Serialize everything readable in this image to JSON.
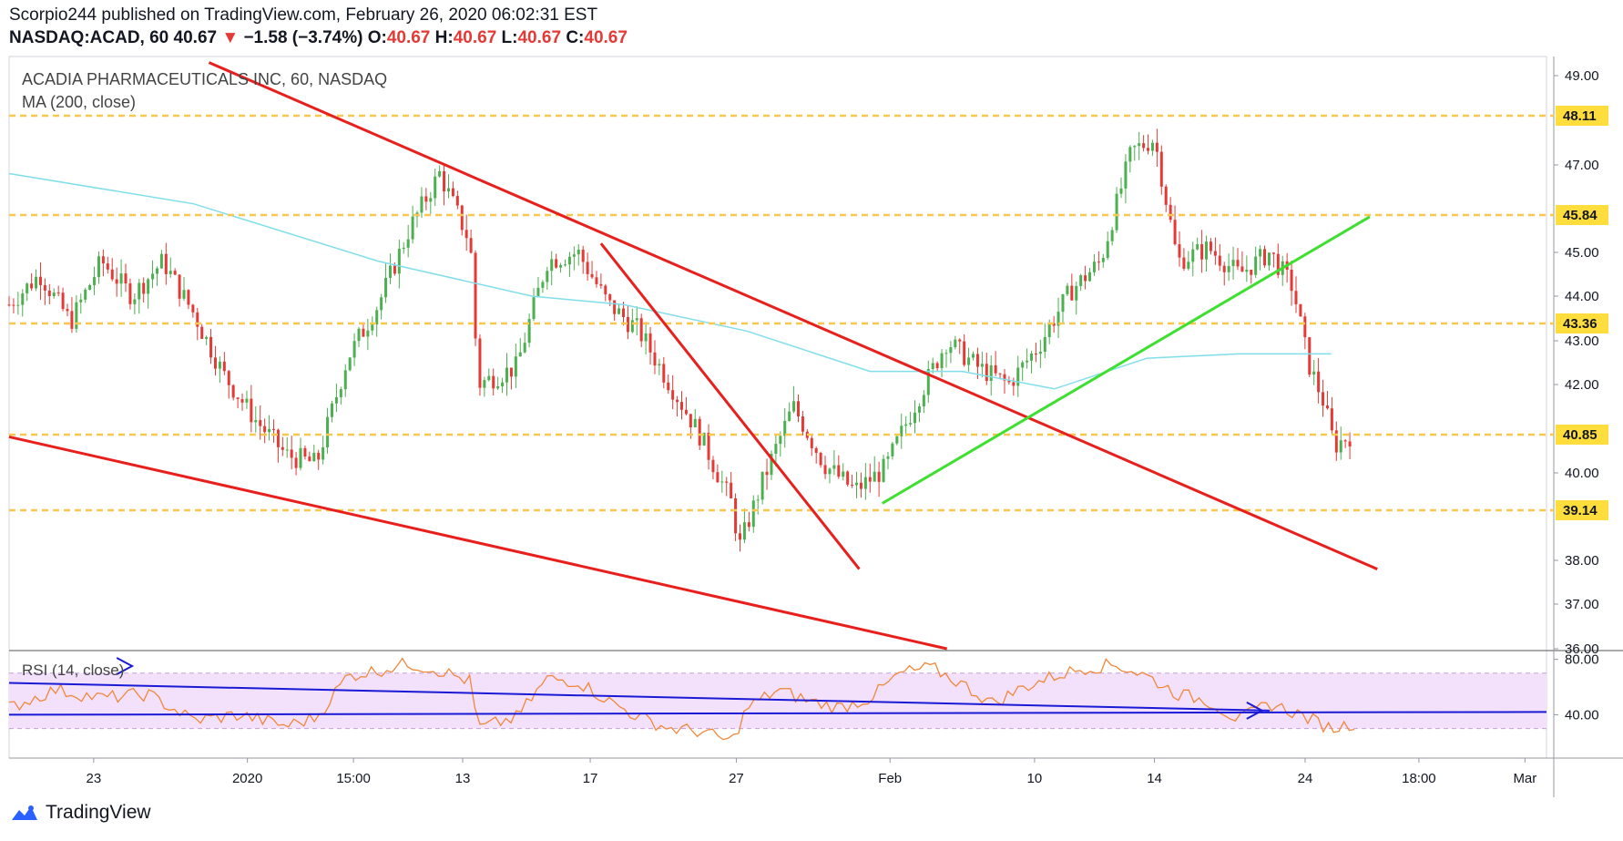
{
  "header": {
    "publisher_line": "Scorpio244 published on TradingView.com, February 26, 2020 06:02:31 EST",
    "symbol": "NASDAQ:ACAD, 60",
    "last": "40.67",
    "change": "−1.58 (−3.74%)",
    "o_label": "O:",
    "o": "40.67",
    "h_label": "H:",
    "h": "40.67",
    "l_label": "L:",
    "l": "40.67",
    "c_label": "C:",
    "c": "40.67"
  },
  "legend": {
    "title": "ACADIA PHARMACEUTICALS INC, 60, NASDAQ",
    "ma": "MA (200, close)",
    "rsi": "RSI (14, close)"
  },
  "footer": {
    "brand": "TradingView"
  },
  "colors": {
    "candle_up": "#4caf50",
    "candle_down": "#e53935",
    "ma": "#80deea",
    "level": "#f9c74f",
    "trend_red": "#e8201d",
    "trend_green": "#3ee02f",
    "rsi_line": "#f0883b",
    "rsi_band": "#f3e1fb",
    "rsi_trend": "#1a1ad6",
    "badge": "#ffdd3d"
  },
  "chart_data": [
    {
      "type": "candlestick",
      "title": "ACADIA PHARMACEUTICALS INC, 60, NASDAQ",
      "y_axis_side": "right",
      "ylim": [
        36,
        49.5
      ],
      "yticks": [
        "49.00",
        "47.00",
        "45.00",
        "44.00",
        "43.00",
        "42.00",
        "40.00",
        "38.00",
        "37.00",
        "36.00"
      ],
      "xticks": [
        "23",
        "2020",
        "15:00",
        "13",
        "17",
        "27",
        "Feb",
        "10",
        "14",
        "24",
        "18:00",
        "Mar"
      ],
      "horizontal_levels": [
        48.11,
        45.84,
        43.36,
        40.85,
        39.14
      ],
      "level_labels": [
        "48.11",
        "45.84",
        "43.36",
        "40.85",
        "39.14"
      ],
      "series": [
        {
          "name": "MA (200, close)",
          "type": "line",
          "points": [
            [
              0.0,
              46.8
            ],
            [
              0.12,
              46.1
            ],
            [
              0.24,
              44.8
            ],
            [
              0.34,
              44.0
            ],
            [
              0.4,
              43.8
            ],
            [
              0.48,
              43.2
            ],
            [
              0.56,
              42.3
            ],
            [
              0.62,
              42.3
            ],
            [
              0.68,
              41.9
            ],
            [
              0.74,
              42.6
            ],
            [
              0.8,
              42.7
            ],
            [
              0.86,
              42.7
            ]
          ]
        }
      ],
      "trendlines": [
        {
          "color": "red",
          "points": [
            [
              0.0,
              40.8
            ],
            [
              0.61,
              36.0
            ]
          ]
        },
        {
          "color": "red",
          "points": [
            [
              0.13,
              49.3
            ],
            [
              0.89,
              37.8
            ]
          ]
        },
        {
          "color": "red",
          "points": [
            [
              0.385,
              45.2
            ],
            [
              0.553,
              37.8
            ]
          ]
        },
        {
          "color": "green",
          "points": [
            [
              0.568,
              39.3
            ],
            [
              0.885,
              45.8
            ]
          ]
        }
      ],
      "price_anchor_points": [
        [
          0.0,
          43.8
        ],
        [
          0.02,
          44.5
        ],
        [
          0.04,
          43.4
        ],
        [
          0.06,
          44.8
        ],
        [
          0.08,
          44.0
        ],
        [
          0.1,
          44.8
        ],
        [
          0.12,
          43.6
        ],
        [
          0.14,
          42.2
        ],
        [
          0.16,
          41.2
        ],
        [
          0.18,
          40.4
        ],
        [
          0.2,
          40.2
        ],
        [
          0.22,
          42.6
        ],
        [
          0.24,
          43.8
        ],
        [
          0.26,
          45.5
        ],
        [
          0.28,
          46.8
        ],
        [
          0.3,
          45.2
        ],
        [
          0.305,
          42.0
        ],
        [
          0.33,
          42.4
        ],
        [
          0.35,
          44.8
        ],
        [
          0.37,
          45.0
        ],
        [
          0.39,
          43.8
        ],
        [
          0.41,
          43.2
        ],
        [
          0.43,
          42.0
        ],
        [
          0.45,
          40.8
        ],
        [
          0.47,
          39.3
        ],
        [
          0.475,
          38.3
        ],
        [
          0.49,
          39.8
        ],
        [
          0.51,
          41.5
        ],
        [
          0.53,
          40.2
        ],
        [
          0.55,
          39.6
        ],
        [
          0.57,
          40.1
        ],
        [
          0.59,
          41.6
        ],
        [
          0.61,
          43.0
        ],
        [
          0.63,
          42.4
        ],
        [
          0.65,
          42.0
        ],
        [
          0.67,
          42.9
        ],
        [
          0.69,
          44.1
        ],
        [
          0.71,
          44.8
        ],
        [
          0.73,
          47.3
        ],
        [
          0.745,
          47.6
        ],
        [
          0.76,
          44.8
        ],
        [
          0.78,
          45.1
        ],
        [
          0.8,
          44.5
        ],
        [
          0.82,
          45.0
        ],
        [
          0.835,
          44.2
        ],
        [
          0.845,
          42.5
        ],
        [
          0.855,
          41.6
        ],
        [
          0.862,
          40.6
        ],
        [
          0.875,
          40.9
        ]
      ]
    },
    {
      "type": "line",
      "title": "RSI (14, close)",
      "ylim": [
        10,
        85
      ],
      "yticks": [
        "80.00",
        "40.00"
      ],
      "band": [
        30,
        70
      ],
      "series": [
        {
          "name": "RSI (14, close)",
          "points": [
            [
              0.0,
              45
            ],
            [
              0.03,
              58
            ],
            [
              0.06,
              52
            ],
            [
              0.09,
              55
            ],
            [
              0.12,
              36
            ],
            [
              0.15,
              40
            ],
            [
              0.18,
              32
            ],
            [
              0.2,
              38
            ],
            [
              0.22,
              68
            ],
            [
              0.24,
              72
            ],
            [
              0.26,
              77
            ],
            [
              0.28,
              72
            ],
            [
              0.3,
              64
            ],
            [
              0.305,
              30
            ],
            [
              0.33,
              38
            ],
            [
              0.35,
              66
            ],
            [
              0.37,
              64
            ],
            [
              0.39,
              50
            ],
            [
              0.41,
              38
            ],
            [
              0.43,
              30
            ],
            [
              0.45,
              28
            ],
            [
              0.47,
              20
            ],
            [
              0.48,
              45
            ],
            [
              0.5,
              58
            ],
            [
              0.52,
              50
            ],
            [
              0.54,
              45
            ],
            [
              0.56,
              52
            ],
            [
              0.58,
              70
            ],
            [
              0.6,
              74
            ],
            [
              0.62,
              62
            ],
            [
              0.64,
              48
            ],
            [
              0.66,
              60
            ],
            [
              0.68,
              68
            ],
            [
              0.7,
              74
            ],
            [
              0.72,
              76
            ],
            [
              0.74,
              68
            ],
            [
              0.76,
              55
            ],
            [
              0.78,
              50
            ],
            [
              0.8,
              36
            ],
            [
              0.82,
              48
            ],
            [
              0.84,
              40
            ],
            [
              0.86,
              30
            ],
            [
              0.875,
              34
            ]
          ]
        }
      ],
      "trendlines": [
        {
          "color": "blue",
          "points": [
            [
              0.0,
              63
            ],
            [
              0.82,
              43
            ]
          ]
        },
        {
          "color": "blue",
          "points": [
            [
              0.0,
              40
            ],
            [
              1.0,
              42
            ]
          ]
        }
      ]
    }
  ]
}
